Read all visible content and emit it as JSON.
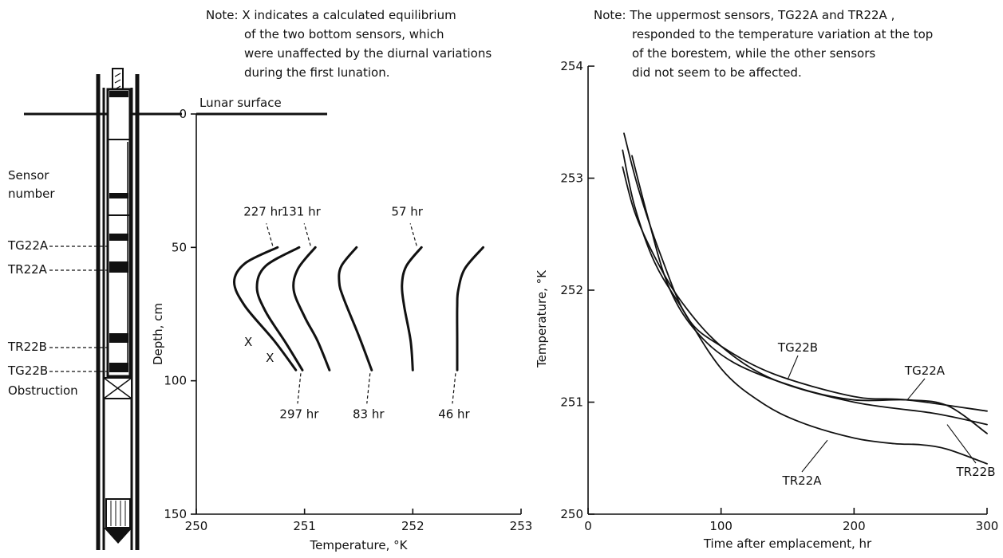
{
  "notes": {
    "left": [
      "Note: X indicates a calculated equilibrium",
      "of the two bottom sensors, which",
      "were unaffected by the diurnal variations",
      "during the first lunation."
    ],
    "right": [
      "Note: The uppermost sensors, TG22A and TR22A ,",
      "responded to the temperature variation at the top",
      "of the borestem, while the other sensors",
      "did not seem to be affected."
    ]
  },
  "probe": {
    "heading_1": "Sensor",
    "heading_2": "number",
    "sensors": [
      "TG22A",
      "TR22A",
      "TR22B",
      "TG22B"
    ],
    "obstruction": "Obstruction"
  },
  "chart_data": [
    {
      "type": "line",
      "xlabel": "Temperature, °K",
      "ylabel": "Depth, cm",
      "xlim": [
        250,
        253
      ],
      "ylim": [
        150,
        0
      ],
      "y_inverted": true,
      "xticks": [
        250,
        251,
        252,
        253
      ],
      "yticks": [
        0,
        50,
        100,
        150
      ],
      "surface_label": "Lunar surface",
      "series": [
        {
          "name": "227 hr",
          "points": [
            [
              250.75,
              50
            ],
            [
              250.45,
              56
            ],
            [
              250.35,
              63
            ],
            [
              250.45,
              72
            ],
            [
              250.72,
              85
            ],
            [
              250.92,
              96
            ]
          ]
        },
        {
          "name": "297 hr",
          "points": [
            [
              250.95,
              50
            ],
            [
              250.64,
              57
            ],
            [
              250.56,
              65
            ],
            [
              250.64,
              74
            ],
            [
              250.83,
              86
            ],
            [
              250.98,
              96
            ]
          ]
        },
        {
          "name": "131 hr",
          "points": [
            [
              251.1,
              50
            ],
            [
              250.94,
              58
            ],
            [
              250.9,
              66
            ],
            [
              251.0,
              76
            ],
            [
              251.12,
              85
            ],
            [
              251.23,
              96
            ]
          ]
        },
        {
          "name": "83 hr",
          "points": [
            [
              251.48,
              50
            ],
            [
              251.34,
              57
            ],
            [
              251.32,
              63
            ],
            [
              251.36,
              69
            ],
            [
              251.5,
              83
            ],
            [
              251.62,
              96
            ]
          ]
        },
        {
          "name": "57 hr",
          "points": [
            [
              252.08,
              50
            ],
            [
              251.94,
              57
            ],
            [
              251.9,
              64
            ],
            [
              251.92,
              72
            ],
            [
              251.98,
              85
            ],
            [
              252.0,
              96
            ]
          ]
        },
        {
          "name": "46 hr",
          "points": [
            [
              252.65,
              50
            ],
            [
              252.48,
              58
            ],
            [
              252.42,
              66
            ],
            [
              252.41,
              72
            ],
            [
              252.41,
              85
            ],
            [
              252.41,
              96
            ]
          ]
        }
      ],
      "equilibrium_marks": [
        {
          "label": "X",
          "x": 250.48,
          "y": 87
        },
        {
          "label": "X",
          "x": 250.68,
          "y": 93
        }
      ]
    },
    {
      "type": "line",
      "xlabel": "Time after emplacement, hr",
      "ylabel": "Temperature, °K",
      "xlim": [
        0,
        300
      ],
      "ylim": [
        250,
        254
      ],
      "xticks": [
        0,
        100,
        200,
        300
      ],
      "yticks": [
        250,
        251,
        252,
        253,
        254
      ],
      "series": [
        {
          "name": "TR22A",
          "points": [
            [
              26,
              253.25
            ],
            [
              35,
              252.75
            ],
            [
              50,
              252.25
            ],
            [
              70,
              251.85
            ],
            [
              100,
              251.3
            ],
            [
              130,
              251.0
            ],
            [
              160,
              250.82
            ],
            [
              200,
              250.68
            ],
            [
              230,
              250.63
            ],
            [
              250,
              250.62
            ],
            [
              270,
              250.58
            ],
            [
              300,
              250.45
            ]
          ]
        },
        {
          "name": "TR22B",
          "points": [
            [
              26,
              253.1
            ],
            [
              35,
              252.7
            ],
            [
              50,
              252.3
            ],
            [
              70,
              251.9
            ],
            [
              100,
              251.5
            ],
            [
              140,
              251.2
            ],
            [
              200,
              251.0
            ],
            [
              260,
              250.9
            ],
            [
              300,
              250.8
            ]
          ]
        },
        {
          "name": "TG22B",
          "points": [
            [
              27,
              253.4
            ],
            [
              38,
              252.9
            ],
            [
              55,
              252.3
            ],
            [
              75,
              251.75
            ],
            [
              100,
              251.5
            ],
            [
              140,
              251.25
            ],
            [
              200,
              251.05
            ],
            [
              240,
              251.02
            ],
            [
              300,
              250.92
            ]
          ]
        },
        {
          "name": "TG22A",
          "points": [
            [
              33,
              253.2
            ],
            [
              45,
              252.65
            ],
            [
              60,
              252.05
            ],
            [
              80,
              251.65
            ],
            [
              110,
              251.35
            ],
            [
              160,
              251.12
            ],
            [
              200,
              251.02
            ],
            [
              240,
              251.02
            ],
            [
              270,
              250.97
            ],
            [
              300,
              250.72
            ]
          ]
        }
      ]
    }
  ]
}
